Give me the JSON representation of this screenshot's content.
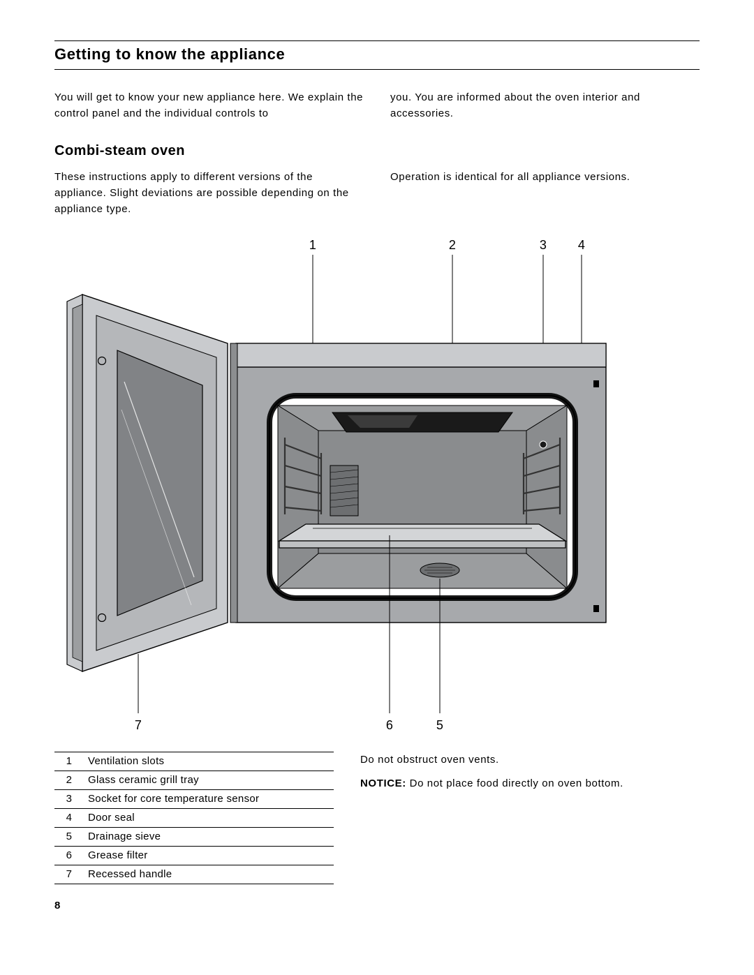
{
  "section_title": "Getting to know the appliance",
  "intro": {
    "left": "You will get to know your new appliance here. We explain the control panel and the individual controls to",
    "right": "you. You are informed about the oven interior and accessories."
  },
  "sub_title": "Combi-steam oven",
  "combi": {
    "left": "These instructions apply to different versions of the appliance. Slight deviations are possible depending on the appliance type.",
    "right": "Operation is identical for all appliance versions."
  },
  "callouts": {
    "top": [
      "1",
      "2",
      "3",
      "4"
    ],
    "bottom_left": "7",
    "bottom_mid": "6",
    "bottom_right": "5"
  },
  "parts": [
    {
      "n": "1",
      "label": "Ventilation slots"
    },
    {
      "n": "2",
      "label": "Glass ceramic grill tray"
    },
    {
      "n": "3",
      "label": "Socket for core temperature sensor"
    },
    {
      "n": "4",
      "label": "Door seal"
    },
    {
      "n": "5",
      "label": "Drainage sieve"
    },
    {
      "n": "6",
      "label": "Grease filter"
    },
    {
      "n": "7",
      "label": "Recessed handle"
    }
  ],
  "notes": {
    "line1": "Do not obstruct oven vents.",
    "notice_label": "NOTICE:",
    "notice_text": " Do not place food directly on oven bottom."
  },
  "page_number": "8",
  "palette": {
    "frame": "#a7a9ac",
    "frame_light": "#c9cbce",
    "door_glass": "#818386",
    "interior_dark": "#5c5e60",
    "interior_mid": "#8a8c8e",
    "heater": "#1a1a1a",
    "rack": "#323232",
    "tray": "#d3d5d7"
  }
}
